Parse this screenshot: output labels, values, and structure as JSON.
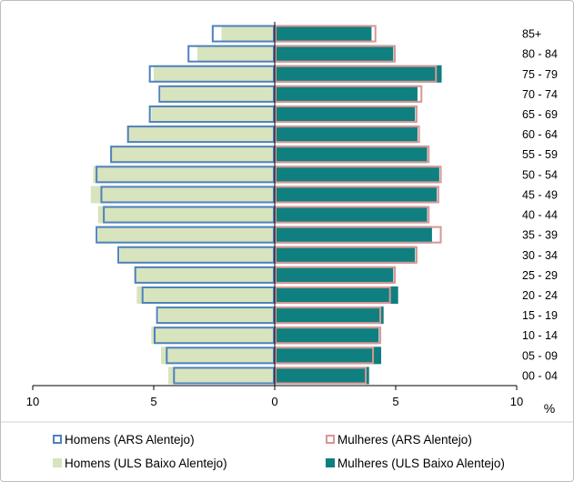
{
  "chart_data": {
    "type": "bar",
    "orientation": "horizontal-population-pyramid",
    "categories": [
      "00 - 04",
      "05 - 09",
      "10 - 14",
      "15 - 19",
      "20 - 24",
      "25 - 29",
      "30 - 34",
      "35 - 39",
      "40 - 44",
      "45 - 49",
      "50 - 54",
      "55 - 59",
      "60 - 64",
      "65 - 69",
      "70 - 74",
      "75 - 79",
      "80 - 84",
      "85+"
    ],
    "x_tick_labels": [
      "10",
      "5",
      "0",
      "5",
      "10"
    ],
    "x_unit_label": "%",
    "xlim": [
      -10,
      10
    ],
    "grid": false,
    "legend_position": "bottom",
    "series": [
      {
        "name": "Homens (ARS Alentejo)",
        "side": "left",
        "style": "outline",
        "color": "#4f81bd",
        "values": [
          4.2,
          4.5,
          5.0,
          4.9,
          5.5,
          5.8,
          6.5,
          7.4,
          7.1,
          7.2,
          7.4,
          6.8,
          6.1,
          5.2,
          4.8,
          5.2,
          3.6,
          2.6
        ]
      },
      {
        "name": "Mulheres (ARS Alentejo)",
        "side": "right",
        "style": "outline",
        "color": "#d99694",
        "values": [
          3.8,
          4.1,
          4.4,
          4.4,
          4.8,
          5.0,
          5.9,
          6.9,
          6.4,
          6.8,
          6.9,
          6.4,
          6.0,
          5.9,
          6.1,
          6.7,
          5.0,
          4.2
        ]
      },
      {
        "name": "Homens (ULS Baixo Alentejo)",
        "side": "left",
        "style": "fill",
        "color": "#d7e4bd",
        "values": [
          4.4,
          4.7,
          5.1,
          4.8,
          5.7,
          5.8,
          6.4,
          7.3,
          7.3,
          7.6,
          7.5,
          6.8,
          6.1,
          5.1,
          4.7,
          5.0,
          3.2,
          2.2
        ]
      },
      {
        "name": "Mulheres (ULS Baixo Alentejo)",
        "side": "right",
        "style": "fill",
        "color": "#0f7f7f",
        "values": [
          3.9,
          4.4,
          4.3,
          4.5,
          5.1,
          4.9,
          5.8,
          6.5,
          6.3,
          6.7,
          6.8,
          6.3,
          5.9,
          5.8,
          5.9,
          6.9,
          4.9,
          4.0
        ]
      }
    ]
  }
}
